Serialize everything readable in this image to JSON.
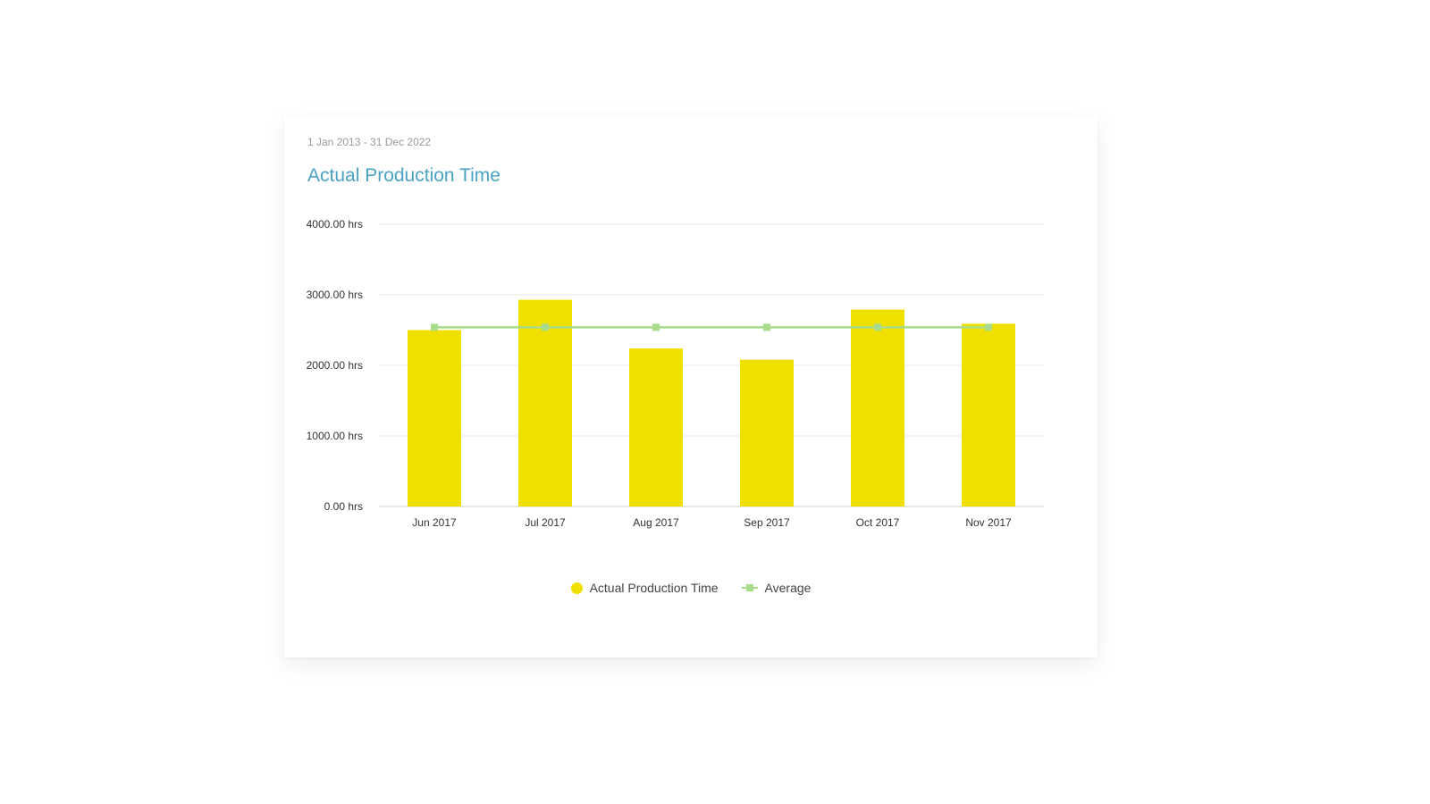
{
  "card": {
    "date_range": "1 Jan 2013 - 31 Dec 2022",
    "title": "Actual Production Time"
  },
  "chart_data": {
    "type": "bar",
    "categories": [
      "Jun 2017",
      "Jul 2017",
      "Aug 2017",
      "Sep 2017",
      "Oct 2017",
      "Nov 2017"
    ],
    "series": [
      {
        "name": "Actual Production Time",
        "type": "bar",
        "color": "#efe000",
        "values": [
          2500,
          2930,
          2240,
          2080,
          2790,
          2590
        ]
      },
      {
        "name": "Average",
        "type": "line",
        "color": "#a8dc8a",
        "values": [
          2540,
          2540,
          2540,
          2540,
          2540,
          2540
        ]
      }
    ],
    "ylim": [
      0,
      4000
    ],
    "yticks": [
      0,
      1000,
      2000,
      3000,
      4000
    ],
    "ytick_labels": [
      "0.00 hrs",
      "1000.00 hrs",
      "2000.00 hrs",
      "3000.00 hrs",
      "4000.00 hrs"
    ],
    "grid": true,
    "legend_position": "bottom-center"
  },
  "legend": {
    "items": [
      {
        "label": "Actual Production Time",
        "color": "#efe000",
        "marker": "circle"
      },
      {
        "label": "Average",
        "color": "#a8dc8a",
        "marker": "line-square"
      }
    ]
  }
}
